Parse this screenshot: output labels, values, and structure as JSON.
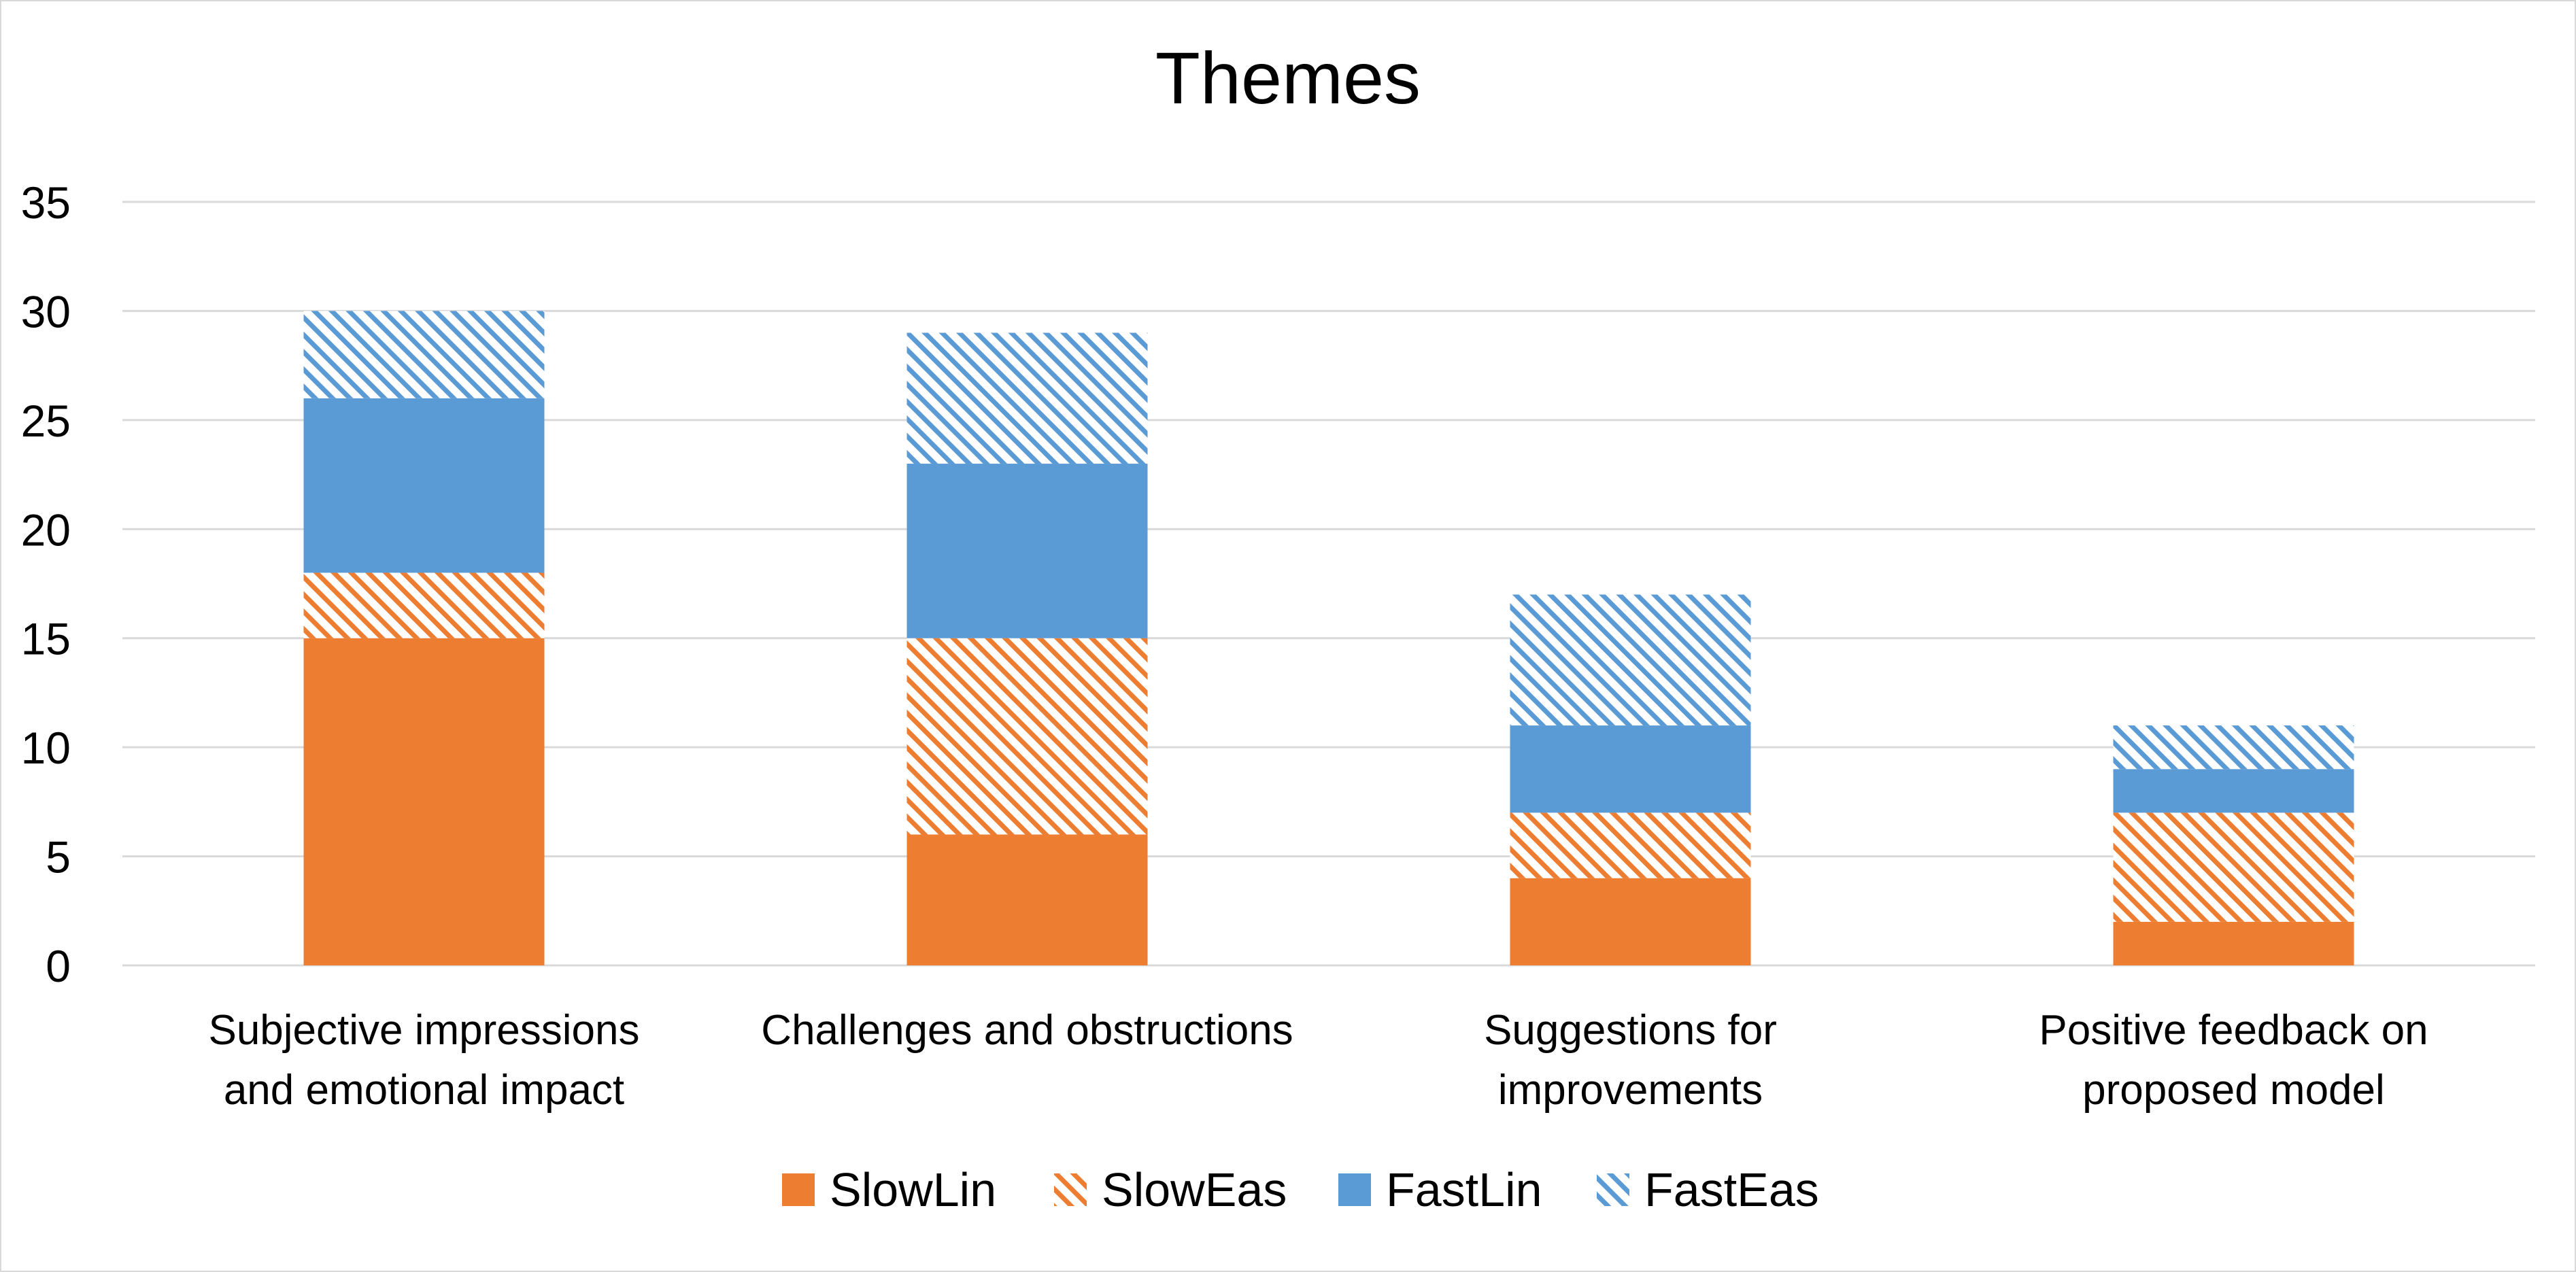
{
  "chart_data": {
    "type": "bar",
    "stacked": true,
    "title": "Themes",
    "xlabel": "",
    "ylabel": "",
    "ylim": [
      0,
      35
    ],
    "yticks": [
      0,
      5,
      10,
      15,
      20,
      25,
      30,
      35
    ],
    "grid": true,
    "legend_position": "bottom",
    "categories": [
      [
        "Subjective impressions",
        "and emotional impact"
      ],
      [
        "Challenges and obstructions"
      ],
      [
        "Suggestions for",
        "improvements"
      ],
      [
        "Positive feedback on",
        "proposed model"
      ]
    ],
    "series": [
      {
        "name": "SlowLin",
        "color": "#ED7D31",
        "pattern": "solid",
        "values": [
          15,
          6,
          4,
          2
        ]
      },
      {
        "name": "SlowEas",
        "color": "#ED7D31",
        "pattern": "hatched",
        "values": [
          3,
          9,
          3,
          5
        ]
      },
      {
        "name": "FastLin",
        "color": "#5B9BD5",
        "pattern": "solid",
        "values": [
          8,
          8,
          4,
          2
        ]
      },
      {
        "name": "FastEas",
        "color": "#5B9BD5",
        "pattern": "hatched",
        "values": [
          4,
          6,
          6,
          2
        ]
      }
    ]
  }
}
